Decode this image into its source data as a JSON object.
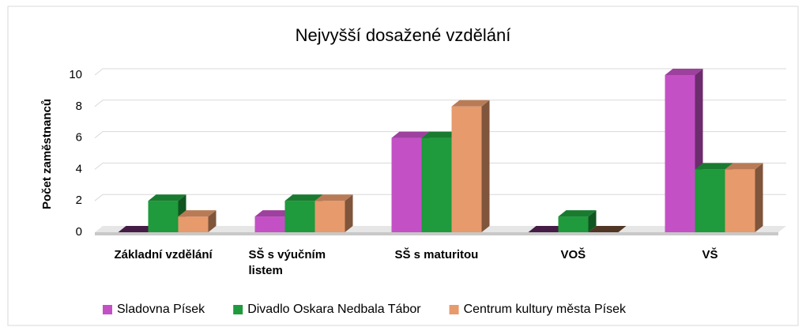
{
  "chart_data": {
    "type": "bar",
    "title": "Nejvyšší dosažené vzdělání",
    "y_label": "Počet zaměstnanců",
    "categories": [
      "Základní vzdělání",
      "SŠ s výučním listem",
      "SŠ s maturitou",
      "VOŠ",
      "VŠ"
    ],
    "series": [
      {
        "name": "Sladovna Písek",
        "color": "#c450c6",
        "values": [
          0,
          1,
          6,
          0,
          10
        ]
      },
      {
        "name": "Divadlo Oskara Nedbala Tábor",
        "color": "#1f9a3c",
        "values": [
          2,
          2,
          6,
          1,
          4
        ]
      },
      {
        "name": "Centrum kultury města Písek",
        "color": "#e79a6c",
        "values": [
          1,
          2,
          8,
          0,
          4
        ]
      }
    ],
    "ylim": [
      0,
      10
    ],
    "yticks": [
      0,
      2,
      4,
      6,
      8,
      10
    ],
    "grid": true,
    "legend": "bottom"
  }
}
